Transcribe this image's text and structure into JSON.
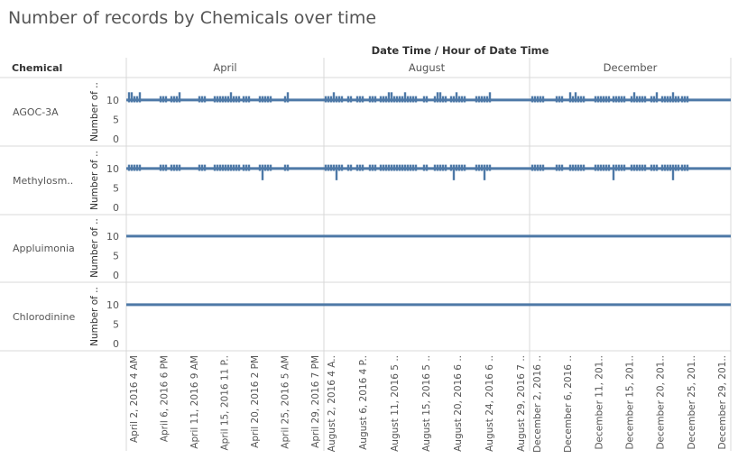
{
  "page": {
    "title": "Number of records by Chemicals over time",
    "column_header": "Date Time  /  Hour of Date Time",
    "row_header": "Chemical",
    "y_axis_label": "Number of ..",
    "colors": {
      "mark": "#4e79a7",
      "grid": "#d9d9d9",
      "text": "#555555"
    }
  },
  "chart_data": {
    "type": "line",
    "xlabel": "Date Time / Hour of Date Time",
    "ylabel": "Number of ..",
    "ylim": [
      0,
      13
    ],
    "yticks": [
      0,
      5,
      10
    ],
    "panes": [
      {
        "name": "April",
        "ticks": [
          "April 2, 2016 4 AM",
          "April 6, 2016 6 PM",
          "April 11, 2016 9 AM",
          "April 15, 2016 11 P..",
          "April 20, 2016 2 PM",
          "April 25, 2016 5 AM",
          "April 29, 2016 7 PM"
        ]
      },
      {
        "name": "August",
        "ticks": [
          "August 2, 2016 4 A..",
          "August 6, 2016 4 P..",
          "August 11, 2016 5 ..",
          "August 15, 2016 5 ..",
          "August 20, 2016 6 ..",
          "August 24, 2016 6 ..",
          "August 29, 2016 7 .."
        ]
      },
      {
        "name": "December",
        "ticks": [
          "December 2, 2016 ..",
          "December 6, 2016 ..",
          "December 11, 201..",
          "December 15, 201..",
          "December 20, 201..",
          "December 25, 201..",
          "December 29, 201.."
        ]
      }
    ],
    "series": [
      {
        "name": "AGOC-3A",
        "baseline": 10,
        "spike_max": 12,
        "dip_min": 10
      },
      {
        "name": "Methylosm..",
        "baseline": 10,
        "spike_max": 10,
        "dip_min": 7
      },
      {
        "name": "Appluimonia",
        "baseline": 10
      },
      {
        "name": "Chlorodinine",
        "baseline": 10
      }
    ]
  }
}
